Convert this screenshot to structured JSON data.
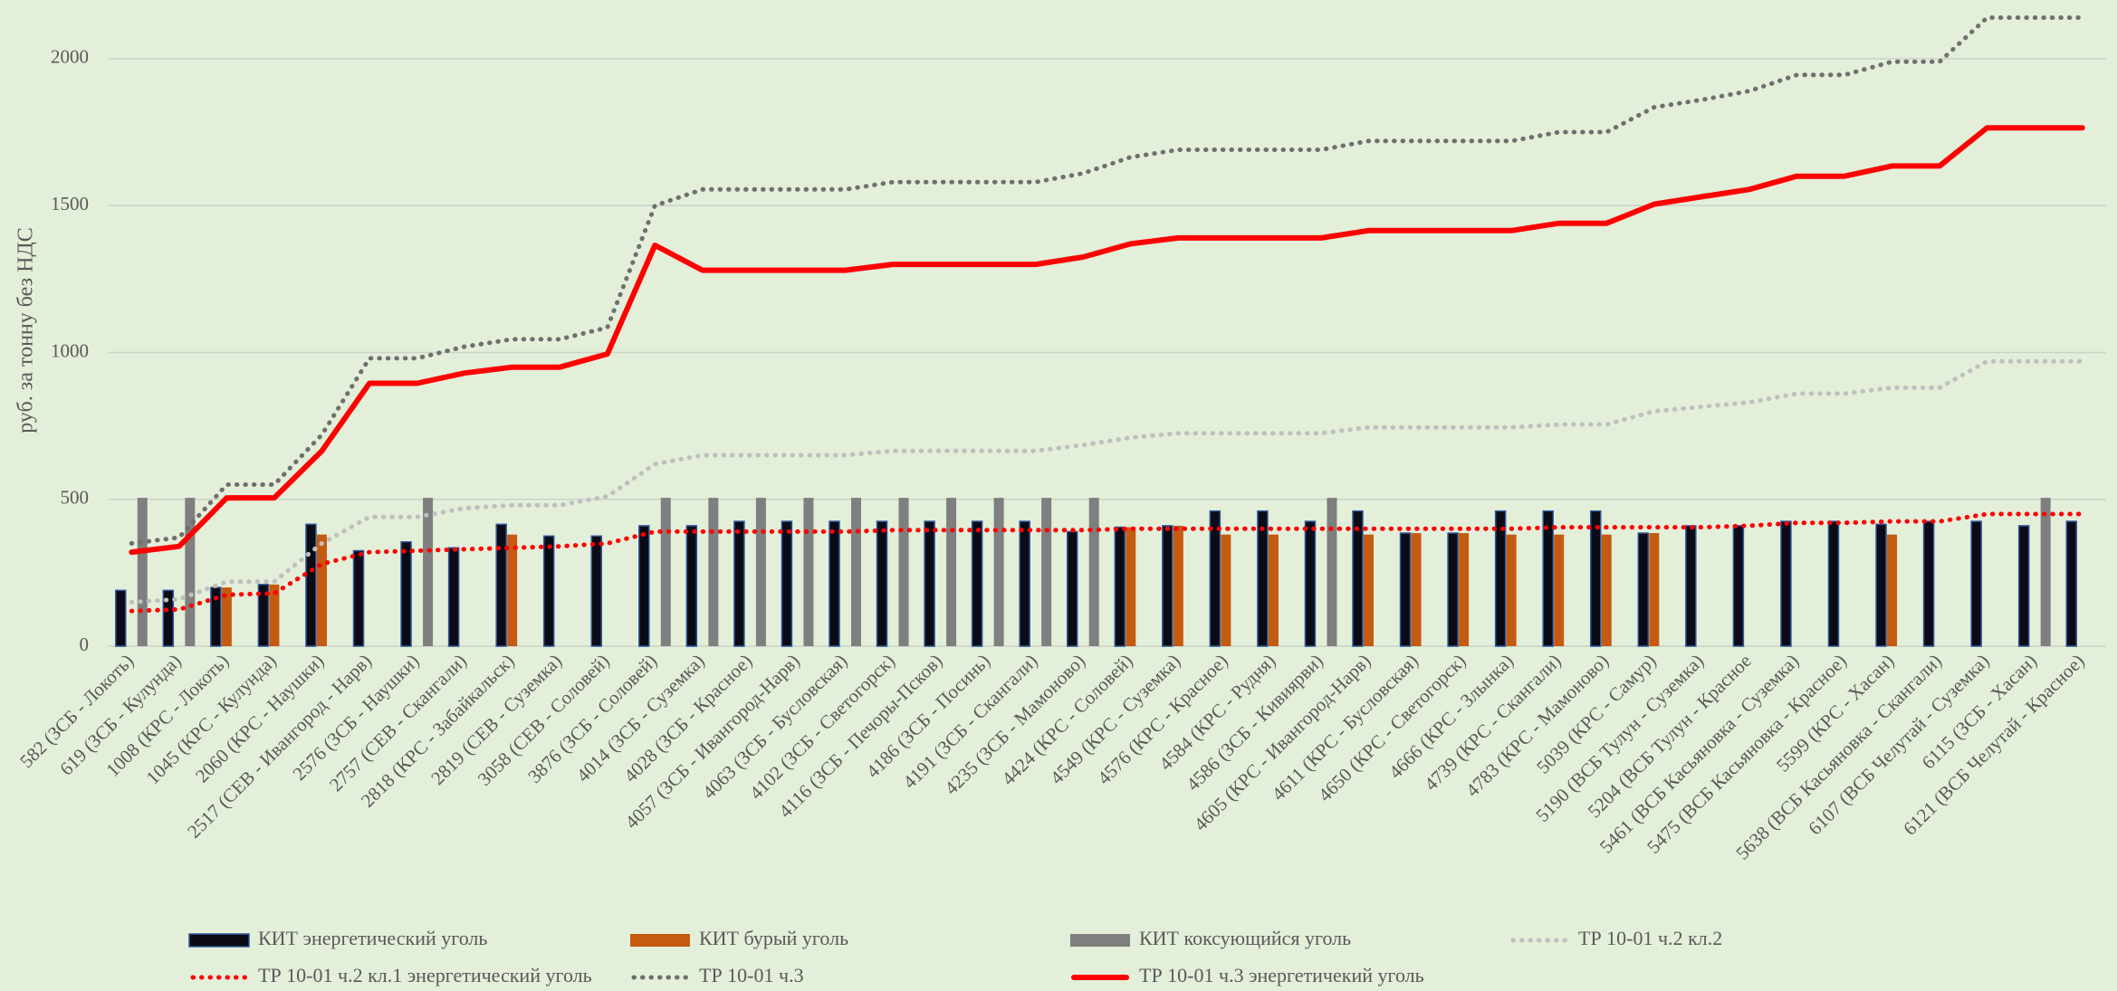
{
  "chart_data": {
    "type": "combo",
    "y_label": "руб. за тонну без НДС",
    "categories": [
      "582 (ЗСБ - Локоть)",
      "619 (ЗСБ - Кулунда)",
      "1008 (КРС - Локоть)",
      "1045 (КРС - Кулунда)",
      "2060 (КРС - Наушки)",
      "2517 (СЕВ - Ивангород - Нарв)",
      "2576 (ЗСБ - Наушки)",
      "2757 (СЕВ - Скангали)",
      "2818 (КРС - Забайкальск)",
      "2819 (СЕВ - Суземка)",
      "3058 (СЕВ - Соловей)",
      "3876 (ЗСБ - Соловей)",
      "4014 (ЗСБ - Суземка)",
      "4028 (ЗСБ - Красное)",
      "4057 (ЗСБ - Ивангород-Нарв)",
      "4063 (ЗСБ - Бусловская)",
      "4102 (ЗСБ - Светогорск)",
      "4116 (ЗСБ - Печоры-Псков)",
      "4186 (ЗСБ - Посинь)",
      "4191 (ЗСБ - Скангали)",
      "4235 (ЗСБ - Мамоново)",
      "4424 (КРС - Соловей)",
      "4549 (КРС - Суземка)",
      "4576 (КРС - Красное)",
      "4584 (КРС - Рудня)",
      "4586 (ЗСБ - Кивиярви)",
      "4605 (КРС - Ивангород-Нарв)",
      "4611 (КРС - Бусловская)",
      "4650 (КРС - Светогорск)",
      "4666 (КРС - Злынка)",
      "4739 (КРС - Скангали)",
      "4783 (КРС - Мамоново)",
      "5039 (КРС - Самур)",
      "5190 (ВСБ Тулун - Суземка)",
      "5204 (ВСБ Тулун - Красное",
      "5461 (ВСБ Касьяновка - Суземка)",
      "5475 (ВСБ Касьяновка - Красное)",
      "5599 (КРС - Хасан)",
      "5638 (ВСБ Касьяновка - Скангали)",
      "6107 (ВСБ Челутай - Суземка)",
      "6115 (ЗСБ - Хасан)",
      "6121 (ВСБ Челутай - Красное)"
    ],
    "series": [
      {
        "name": "КИТ энергетический уголь",
        "type": "bar",
        "color": "#0b0b16",
        "values": [
          190,
          190,
          200,
          210,
          415,
          325,
          355,
          335,
          415,
          375,
          375,
          410,
          410,
          425,
          425,
          425,
          425,
          425,
          425,
          425,
          390,
          405,
          410,
          460,
          460,
          425,
          460,
          385,
          385,
          460,
          460,
          460,
          385,
          410,
          410,
          425,
          425,
          415,
          425,
          425,
          410,
          425
        ]
      },
      {
        "name": "КИТ бурый уголь",
        "type": "bar",
        "color": "#c55a11",
        "values": [
          null,
          null,
          200,
          210,
          380,
          null,
          null,
          null,
          380,
          null,
          null,
          null,
          null,
          null,
          null,
          null,
          null,
          null,
          null,
          null,
          null,
          405,
          410,
          380,
          380,
          null,
          380,
          385,
          385,
          380,
          380,
          380,
          385,
          null,
          null,
          null,
          null,
          380,
          null,
          null,
          null,
          null
        ]
      },
      {
        "name": "КИТ коксующийся уголь",
        "type": "bar",
        "color": "#7f7f7f",
        "values": [
          505,
          505,
          null,
          null,
          null,
          null,
          505,
          null,
          null,
          null,
          null,
          505,
          505,
          505,
          505,
          505,
          505,
          505,
          505,
          505,
          505,
          null,
          null,
          null,
          null,
          505,
          null,
          null,
          null,
          null,
          null,
          null,
          null,
          null,
          null,
          null,
          null,
          null,
          null,
          null,
          505,
          null
        ]
      },
      {
        "name": "ТР 10-01 ч.2 кл.2",
        "type": "line",
        "dash": "dotted",
        "color": "#bfbfbf",
        "values": [
          150,
          160,
          220,
          220,
          350,
          440,
          440,
          470,
          480,
          480,
          510,
          620,
          650,
          650,
          650,
          650,
          665,
          665,
          665,
          665,
          685,
          710,
          725,
          725,
          725,
          725,
          745,
          745,
          745,
          745,
          755,
          755,
          800,
          815,
          830,
          860,
          860,
          880,
          880,
          970,
          970,
          970
        ]
      },
      {
        "name": "ТР 10-01 ч.2 кл.1 энергетический уголь",
        "type": "line",
        "dash": "dotted",
        "color": "#ff0000",
        "values": [
          120,
          125,
          175,
          180,
          280,
          320,
          325,
          330,
          335,
          340,
          350,
          390,
          390,
          390,
          390,
          390,
          395,
          395,
          395,
          395,
          395,
          400,
          400,
          400,
          400,
          400,
          400,
          400,
          400,
          400,
          405,
          405,
          405,
          405,
          410,
          420,
          420,
          425,
          425,
          450,
          450,
          450
        ]
      },
      {
        "name": "ТР 10-01 ч.3",
        "type": "line",
        "dash": "dotted",
        "color": "#6f6f6f",
        "values": [
          350,
          370,
          550,
          550,
          720,
          980,
          980,
          1020,
          1045,
          1045,
          1085,
          1500,
          1555,
          1555,
          1555,
          1555,
          1580,
          1580,
          1580,
          1580,
          1610,
          1665,
          1690,
          1690,
          1690,
          1690,
          1720,
          1720,
          1720,
          1720,
          1750,
          1750,
          1835,
          1860,
          1890,
          1945,
          1945,
          1990,
          1990,
          2140,
          2140,
          2140
        ]
      },
      {
        "name": "ТР 10-01 ч.3 энергетичекий уголь",
        "type": "line",
        "dash": "solid",
        "color": "#ff0000",
        "values": [
          320,
          340,
          505,
          505,
          665,
          895,
          895,
          930,
          950,
          950,
          995,
          1365,
          1280,
          1280,
          1280,
          1280,
          1300,
          1300,
          1300,
          1300,
          1325,
          1370,
          1390,
          1390,
          1390,
          1390,
          1415,
          1415,
          1415,
          1415,
          1440,
          1440,
          1505,
          1530,
          1555,
          1600,
          1600,
          1635,
          1635,
          1765,
          1765,
          1765
        ]
      }
    ],
    "ylim": [
      0,
      2200
    ],
    "yticks": [
      0,
      500,
      1000,
      1500,
      2000
    ],
    "grid": true,
    "legend": "bottom"
  }
}
